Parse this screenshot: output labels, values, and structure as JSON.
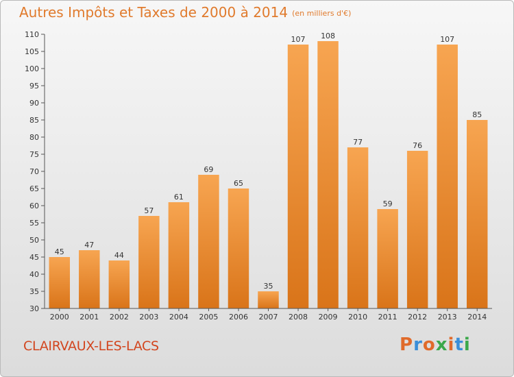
{
  "header": {
    "title": "Autres Impôts et Taxes de 2000 à 2014",
    "unit": "(en milliers d'€)"
  },
  "footer": {
    "commune": "CLAIRVAUX-LES-LACS",
    "logo_text": "Proxiti"
  },
  "colors": {
    "bar_top": "#f7a551",
    "bar_bottom": "#d97419",
    "title": "#e07a2c",
    "commune": "#d2451e",
    "axis_text": "#333333",
    "grid": "#d0d0d0",
    "logo_letters": [
      "#e06a2a",
      "#3b8ed8",
      "#e06a2a",
      "#3ba84a",
      "#e06a2a",
      "#3b8ed8",
      "#3ba84a"
    ]
  },
  "chart_data": {
    "type": "bar",
    "title": "Autres Impôts et Taxes de 2000 à 2014",
    "subtitle": "(en milliers d'€)",
    "xlabel": "",
    "ylabel": "",
    "categories": [
      "2000",
      "2001",
      "2002",
      "2003",
      "2004",
      "2005",
      "2006",
      "2007",
      "2008",
      "2009",
      "2010",
      "2011",
      "2012",
      "2013",
      "2014"
    ],
    "values": [
      45,
      47,
      44,
      57,
      61,
      69,
      65,
      35,
      107,
      108,
      77,
      59,
      76,
      107,
      85
    ],
    "ylim": [
      30,
      110
    ],
    "yticks": [
      30,
      35,
      40,
      45,
      50,
      55,
      60,
      65,
      70,
      75,
      80,
      85,
      90,
      95,
      100,
      105,
      110
    ],
    "grid": false,
    "legend": "none"
  }
}
